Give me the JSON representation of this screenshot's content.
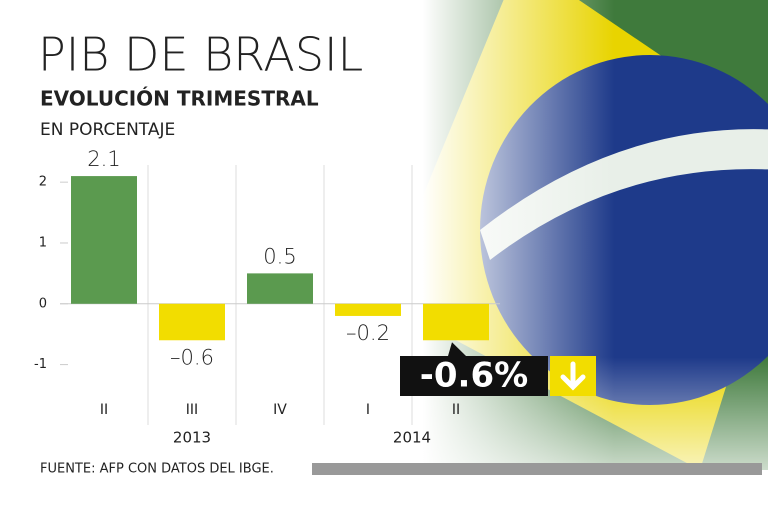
{
  "chart_data": {
    "type": "bar",
    "title": "PIB DE BRASIL",
    "subtitle": "EVOLUCIÓN TRIMESTRAL",
    "unit_label": "EN PORCENTAJE",
    "categories": [
      "II",
      "III",
      "IV",
      "I",
      "II"
    ],
    "groups": [
      {
        "label": "2013",
        "span": 3
      },
      {
        "label": "2014",
        "span": 2
      }
    ],
    "values": [
      2.1,
      -0.6,
      0.5,
      -0.2,
      -0.6
    ],
    "value_labels": [
      "2.1",
      "–0.6",
      "0.5",
      "–0.2",
      null
    ],
    "positive_color": "#5b9a4f",
    "negative_color": "#f2dd00",
    "ylim": [
      -1.5,
      2.2
    ],
    "yticks": [
      2,
      1,
      0,
      -1
    ],
    "callout": {
      "text": "-0.6%",
      "index": 4
    },
    "source": "FUENTE: AFP CON DATOS DEL IBGE."
  }
}
